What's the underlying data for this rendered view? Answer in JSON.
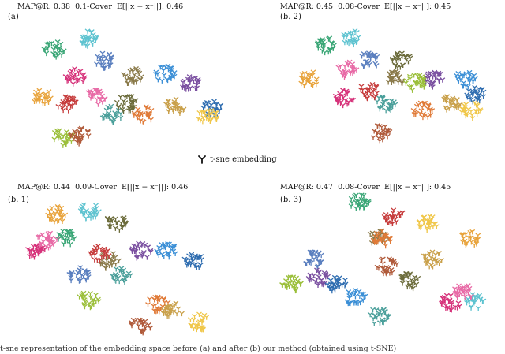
{
  "legend": {
    "label": "t-sne embedding",
    "marker": "tri-down-icon"
  },
  "caption": "t-sne representation of the embedding space before (a) and after (b) our method (obtained using t-SNE)",
  "palette": [
    "#e8a33b",
    "#3aa676",
    "#d6327a",
    "#5a7fbf",
    "#8a7a4a",
    "#5ec3d0",
    "#e07b39",
    "#7a4fa0",
    "#9bbf3a",
    "#b05a3a",
    "#2f6db0",
    "#c9a04a",
    "#e86aa6",
    "#4a9f9a",
    "#f0c74a",
    "#6b6b3a",
    "#3b8fd6",
    "#c63b3b"
  ],
  "panels": [
    {
      "label": "(a)",
      "header": {
        "map_prefix": "MAP@R:",
        "map": "0.38",
        "cover": "0.1-Cover",
        "e_text": "E[||x − x⁻||]: 0.46"
      }
    },
    {
      "label": "(b. 2)",
      "header": {
        "map_prefix": "MAP@R:",
        "map": "0.45",
        "cover": "0.08-Cover",
        "e_text": "E[||x − x⁻||]: 0.45"
      }
    },
    {
      "label": "(b. 1)",
      "header": {
        "map_prefix": "MAP@R:",
        "map": "0.44",
        "cover": "0.09-Cover",
        "e_text": "E[||x − x⁻||]: 0.46"
      }
    },
    {
      "label": "(b. 3)",
      "header": {
        "map_prefix": "MAP@R:",
        "map": "0.47",
        "cover": "0.08-Cover",
        "e_text": "E[||x − x⁻||]: 0.45"
      }
    }
  ],
  "chart_data": [
    {
      "type": "scatter",
      "title": "(a)",
      "note_map_at_r": 0.38,
      "cover": "0.1-Cover",
      "expected_distance": 0.46,
      "xlim": [
        0,
        100
      ],
      "ylim": [
        0,
        100
      ],
      "clusters": [
        {
          "color": "#e8a33b",
          "x": 12,
          "y": 45
        },
        {
          "color": "#3aa676",
          "x": 18,
          "y": 80
        },
        {
          "color": "#d6327a",
          "x": 28,
          "y": 60
        },
        {
          "color": "#5a7fbf",
          "x": 42,
          "y": 72
        },
        {
          "color": "#8a7a4a",
          "x": 55,
          "y": 60
        },
        {
          "color": "#5ec3d0",
          "x": 35,
          "y": 88
        },
        {
          "color": "#e07b39",
          "x": 60,
          "y": 32
        },
        {
          "color": "#7a4fa0",
          "x": 82,
          "y": 55
        },
        {
          "color": "#9bbf3a",
          "x": 22,
          "y": 15
        },
        {
          "color": "#b05a3a",
          "x": 30,
          "y": 16
        },
        {
          "color": "#2f6db0",
          "x": 92,
          "y": 36
        },
        {
          "color": "#c9a04a",
          "x": 75,
          "y": 38
        },
        {
          "color": "#e86aa6",
          "x": 38,
          "y": 45
        },
        {
          "color": "#4a9f9a",
          "x": 45,
          "y": 32
        },
        {
          "color": "#f0c74a",
          "x": 90,
          "y": 30
        },
        {
          "color": "#6b6b3a",
          "x": 52,
          "y": 40
        },
        {
          "color": "#3b8fd6",
          "x": 70,
          "y": 62
        },
        {
          "color": "#c63b3b",
          "x": 24,
          "y": 40
        }
      ]
    },
    {
      "type": "scatter",
      "title": "(b. 2)",
      "note_map_at_r": 0.45,
      "cover": "0.08-Cover",
      "expected_distance": 0.45,
      "xlim": [
        0,
        100
      ],
      "ylim": [
        0,
        100
      ],
      "clusters": [
        {
          "color": "#e8a33b",
          "x": 12,
          "y": 55
        },
        {
          "color": "#3aa676",
          "x": 20,
          "y": 82
        },
        {
          "color": "#d6327a",
          "x": 28,
          "y": 40
        },
        {
          "color": "#5a7fbf",
          "x": 40,
          "y": 70
        },
        {
          "color": "#8a7a4a",
          "x": 52,
          "y": 55
        },
        {
          "color": "#5ec3d0",
          "x": 32,
          "y": 88
        },
        {
          "color": "#e07b39",
          "x": 65,
          "y": 30
        },
        {
          "color": "#7a4fa0",
          "x": 70,
          "y": 55
        },
        {
          "color": "#9bbf3a",
          "x": 62,
          "y": 52
        },
        {
          "color": "#b05a3a",
          "x": 45,
          "y": 12
        },
        {
          "color": "#2f6db0",
          "x": 90,
          "y": 42
        },
        {
          "color": "#c9a04a",
          "x": 78,
          "y": 36
        },
        {
          "color": "#e86aa6",
          "x": 30,
          "y": 62
        },
        {
          "color": "#4a9f9a",
          "x": 48,
          "y": 36
        },
        {
          "color": "#f0c74a",
          "x": 88,
          "y": 30
        },
        {
          "color": "#6b6b3a",
          "x": 55,
          "y": 70
        },
        {
          "color": "#3b8fd6",
          "x": 85,
          "y": 55
        },
        {
          "color": "#c63b3b",
          "x": 40,
          "y": 45
        }
      ]
    },
    {
      "type": "scatter",
      "title": "(b. 1)",
      "note_map_at_r": 0.44,
      "cover": "0.09-Cover",
      "expected_distance": 0.46,
      "xlim": [
        0,
        100
      ],
      "ylim": [
        0,
        100
      ],
      "clusters": [
        {
          "color": "#e8a33b",
          "x": 20,
          "y": 88
        },
        {
          "color": "#3aa676",
          "x": 25,
          "y": 72
        },
        {
          "color": "#d6327a",
          "x": 10,
          "y": 62
        },
        {
          "color": "#5a7fbf",
          "x": 30,
          "y": 45
        },
        {
          "color": "#8a7a4a",
          "x": 45,
          "y": 55
        },
        {
          "color": "#5ec3d0",
          "x": 35,
          "y": 90
        },
        {
          "color": "#e07b39",
          "x": 68,
          "y": 25
        },
        {
          "color": "#7a4fa0",
          "x": 60,
          "y": 62
        },
        {
          "color": "#9bbf3a",
          "x": 35,
          "y": 28
        },
        {
          "color": "#b05a3a",
          "x": 60,
          "y": 10
        },
        {
          "color": "#2f6db0",
          "x": 85,
          "y": 55
        },
        {
          "color": "#c9a04a",
          "x": 75,
          "y": 20
        },
        {
          "color": "#e86aa6",
          "x": 15,
          "y": 70
        },
        {
          "color": "#4a9f9a",
          "x": 50,
          "y": 45
        },
        {
          "color": "#f0c74a",
          "x": 88,
          "y": 12
        },
        {
          "color": "#6b6b3a",
          "x": 48,
          "y": 82
        },
        {
          "color": "#3b8fd6",
          "x": 72,
          "y": 62
        },
        {
          "color": "#c63b3b",
          "x": 40,
          "y": 60
        }
      ]
    },
    {
      "type": "scatter",
      "title": "(b. 3)",
      "note_map_at_r": 0.47,
      "cover": "0.08-Cover",
      "expected_distance": 0.45,
      "xlim": [
        0,
        100
      ],
      "ylim": [
        0,
        100
      ],
      "clusters": [
        {
          "color": "#e8a33b",
          "x": 88,
          "y": 70
        },
        {
          "color": "#3aa676",
          "x": 40,
          "y": 95
        },
        {
          "color": "#d6327a",
          "x": 80,
          "y": 25
        },
        {
          "color": "#5a7fbf",
          "x": 20,
          "y": 55
        },
        {
          "color": "#8a7a4a",
          "x": 48,
          "y": 70
        },
        {
          "color": "#5ec3d0",
          "x": 90,
          "y": 25
        },
        {
          "color": "#e07b39",
          "x": 50,
          "y": 70
        },
        {
          "color": "#7a4fa0",
          "x": 22,
          "y": 42
        },
        {
          "color": "#9bbf3a",
          "x": 10,
          "y": 38
        },
        {
          "color": "#b05a3a",
          "x": 52,
          "y": 50
        },
        {
          "color": "#2f6db0",
          "x": 30,
          "y": 38
        },
        {
          "color": "#c9a04a",
          "x": 72,
          "y": 55
        },
        {
          "color": "#e86aa6",
          "x": 85,
          "y": 32
        },
        {
          "color": "#4a9f9a",
          "x": 48,
          "y": 15
        },
        {
          "color": "#f0c74a",
          "x": 70,
          "y": 80
        },
        {
          "color": "#6b6b3a",
          "x": 62,
          "y": 40
        },
        {
          "color": "#3b8fd6",
          "x": 38,
          "y": 28
        },
        {
          "color": "#c63b3b",
          "x": 55,
          "y": 85
        }
      ]
    }
  ]
}
